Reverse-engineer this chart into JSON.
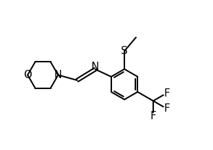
{
  "background_color": "#ffffff",
  "line_color": "#000000",
  "line_width": 1.5,
  "font_size": 10,
  "figsize": [
    3.1,
    2.19
  ],
  "dpi": 100,
  "xlim": [
    0.0,
    10.0
  ],
  "ylim": [
    0.0,
    7.0
  ]
}
